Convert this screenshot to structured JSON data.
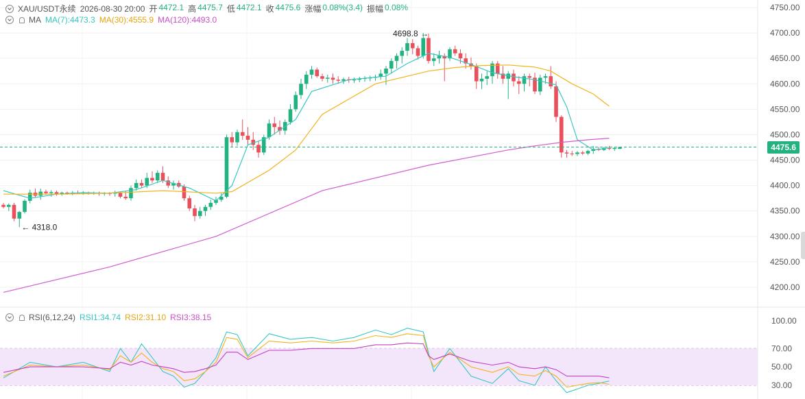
{
  "header": {
    "symbol": "XAU/USDT永续",
    "datetime": "2026-08-30 20:00",
    "open_label": "开",
    "open": "4472.1",
    "high_label": "高",
    "high": "4475.7",
    "low_label": "低",
    "low": "4472.1",
    "close_label": "收",
    "close": "4475.6",
    "change_label": "涨幅",
    "change": "0.08%(3.4)",
    "amp_label": "振幅",
    "amp": "0.08%"
  },
  "ma_legend": {
    "title": "MA",
    "ma7": "MA(7):4473.3",
    "ma30": "MA(30):4555.9",
    "ma120": "MA(120):4493.0"
  },
  "rsi_legend": {
    "title": "RSI(6,12,24)",
    "rsi1": "RSI1:34.74",
    "rsi2": "RSI2:31.10",
    "rsi3": "RSI3:38.15"
  },
  "colors": {
    "up": "#22b27f",
    "down": "#e8505b",
    "ma7": "#35c7c2",
    "ma30": "#f2b21a",
    "ma120": "#d25bd2",
    "rsi1": "#35c7c2",
    "rsi2": "#f2b21a",
    "rsi3": "#c23fc2",
    "rsi_band": "#f3e6fb"
  },
  "annotations": {
    "max_label": "4698.8",
    "min_label": "4318.0"
  },
  "current_price": "4475.6",
  "chart_data": {
    "type": "candlestick",
    "price_axis": {
      "ylim": [
        4175,
        4760
      ],
      "ticks": [
        4750,
        4700,
        4650,
        4600,
        4550,
        4500,
        4450,
        4400,
        4350,
        4300,
        4250,
        4200
      ],
      "tick_labels": [
        "4750.00",
        "4700.00",
        "4650.00",
        "4600.00",
        "4550.00",
        "4500.00",
        "4450.00",
        "4400.00",
        "4350.00",
        "4300.00",
        "4250.00",
        "4200.00"
      ],
      "current": 4475.6
    },
    "candles": [
      [
        4362,
        4366,
        4355,
        4358
      ],
      [
        4358,
        4365,
        4350,
        4362
      ],
      [
        4362,
        4366,
        4330,
        4335
      ],
      [
        4335,
        4350,
        4318,
        4348
      ],
      [
        4348,
        4373,
        4345,
        4370
      ],
      [
        4370,
        4392,
        4365,
        4386
      ],
      [
        4386,
        4394,
        4376,
        4380
      ],
      [
        4380,
        4394,
        4372,
        4388
      ],
      [
        4388,
        4392,
        4382,
        4385
      ],
      [
        4385,
        4391,
        4378,
        4387
      ],
      [
        4387,
        4390,
        4380,
        4384
      ],
      [
        4384,
        4388,
        4380,
        4386
      ],
      [
        4386,
        4388,
        4382,
        4384
      ],
      [
        4384,
        4389,
        4381,
        4386
      ],
      [
        4386,
        4390,
        4383,
        4385
      ],
      [
        4385,
        4389,
        4382,
        4386
      ],
      [
        4386,
        4388,
        4382,
        4385
      ],
      [
        4385,
        4388,
        4382,
        4386
      ],
      [
        4386,
        4388,
        4380,
        4384
      ],
      [
        4384,
        4387,
        4380,
        4385
      ],
      [
        4385,
        4387,
        4380,
        4384
      ],
      [
        4384,
        4390,
        4378,
        4386
      ],
      [
        4386,
        4388,
        4375,
        4378
      ],
      [
        4378,
        4390,
        4372,
        4375
      ],
      [
        4375,
        4400,
        4370,
        4395
      ],
      [
        4395,
        4412,
        4390,
        4405
      ],
      [
        4405,
        4412,
        4395,
        4400
      ],
      [
        4400,
        4425,
        4395,
        4415
      ],
      [
        4415,
        4428,
        4405,
        4410
      ],
      [
        4410,
        4430,
        4405,
        4425
      ],
      [
        4425,
        4438,
        4405,
        4410
      ],
      [
        4410,
        4418,
        4395,
        4400
      ],
      [
        4400,
        4410,
        4392,
        4405
      ],
      [
        4405,
        4410,
        4395,
        4398
      ],
      [
        4398,
        4402,
        4370,
        4375
      ],
      [
        4375,
        4380,
        4350,
        4355
      ],
      [
        4355,
        4362,
        4330,
        4340
      ],
      [
        4340,
        4358,
        4335,
        4350
      ],
      [
        4350,
        4362,
        4340,
        4358
      ],
      [
        4358,
        4372,
        4352,
        4366
      ],
      [
        4366,
        4378,
        4362,
        4372
      ],
      [
        4372,
        4385,
        4368,
        4378
      ],
      [
        4378,
        4500,
        4375,
        4495
      ],
      [
        4495,
        4505,
        4475,
        4485
      ],
      [
        4485,
        4510,
        4478,
        4505
      ],
      [
        4505,
        4530,
        4490,
        4498
      ],
      [
        4498,
        4515,
        4480,
        4490
      ],
      [
        4490,
        4505,
        4470,
        4480
      ],
      [
        4480,
        4488,
        4455,
        4465
      ],
      [
        4465,
        4500,
        4460,
        4495
      ],
      [
        4495,
        4530,
        4490,
        4522
      ],
      [
        4522,
        4535,
        4500,
        4515
      ],
      [
        4515,
        4528,
        4500,
        4508
      ],
      [
        4508,
        4530,
        4500,
        4525
      ],
      [
        4525,
        4560,
        4520,
        4550
      ],
      [
        4550,
        4585,
        4545,
        4578
      ],
      [
        4578,
        4610,
        4570,
        4600
      ],
      [
        4600,
        4625,
        4590,
        4618
      ],
      [
        4618,
        4635,
        4610,
        4628
      ],
      [
        4628,
        4632,
        4612,
        4615
      ],
      [
        4615,
        4620,
        4605,
        4610
      ],
      [
        4610,
        4618,
        4602,
        4612
      ],
      [
        4612,
        4620,
        4600,
        4608
      ],
      [
        4608,
        4615,
        4600,
        4606
      ],
      [
        4606,
        4612,
        4600,
        4609
      ],
      [
        4609,
        4614,
        4602,
        4607
      ],
      [
        4607,
        4612,
        4602,
        4608
      ],
      [
        4608,
        4614,
        4603,
        4610
      ],
      [
        4610,
        4615,
        4604,
        4611
      ],
      [
        4611,
        4616,
        4605,
        4612
      ],
      [
        4612,
        4618,
        4606,
        4614
      ],
      [
        4614,
        4628,
        4608,
        4620
      ],
      [
        4620,
        4635,
        4598,
        4630
      ],
      [
        4630,
        4650,
        4620,
        4645
      ],
      [
        4645,
        4660,
        4630,
        4655
      ],
      [
        4655,
        4672,
        4640,
        4665
      ],
      [
        4665,
        4690,
        4655,
        4680
      ],
      [
        4680,
        4688,
        4658,
        4670
      ],
      [
        4670,
        4675,
        4648,
        4655
      ],
      [
        4655,
        4700,
        4650,
        4690
      ],
      [
        4690,
        4698.8,
        4640,
        4645
      ],
      [
        4645,
        4660,
        4635,
        4650
      ],
      [
        4650,
        4665,
        4640,
        4655
      ],
      [
        4655,
        4660,
        4605,
        4650
      ],
      [
        4650,
        4672,
        4645,
        4668
      ],
      [
        4668,
        4675,
        4655,
        4660
      ],
      [
        4660,
        4668,
        4640,
        4650
      ],
      [
        4650,
        4660,
        4630,
        4640
      ],
      [
        4640,
        4652,
        4628,
        4635
      ],
      [
        4635,
        4640,
        4590,
        4605
      ],
      [
        4605,
        4620,
        4590,
        4610
      ],
      [
        4610,
        4625,
        4598,
        4615
      ],
      [
        4615,
        4645,
        4600,
        4640
      ],
      [
        4640,
        4645,
        4610,
        4620
      ],
      [
        4620,
        4635,
        4600,
        4610
      ],
      [
        4610,
        4625,
        4570,
        4620
      ],
      [
        4620,
        4628,
        4595,
        4605
      ],
      [
        4605,
        4615,
        4580,
        4600
      ],
      [
        4600,
        4620,
        4585,
        4615
      ],
      [
        4615,
        4620,
        4595,
        4612
      ],
      [
        4612,
        4622,
        4580,
        4585
      ],
      [
        4585,
        4618,
        4578,
        4612
      ],
      [
        4612,
        4620,
        4600,
        4615
      ],
      [
        4615,
        4635,
        4590,
        4595
      ],
      [
        4595,
        4605,
        4525,
        4535
      ],
      [
        4535,
        4538,
        4455,
        4465
      ],
      [
        4465,
        4470,
        4455,
        4463
      ],
      [
        4463,
        4468,
        4458,
        4462
      ],
      [
        4462,
        4468,
        4458,
        4465
      ],
      [
        4465,
        4468,
        4460,
        4463
      ],
      [
        4463,
        4470,
        4460,
        4468
      ],
      [
        4468,
        4478,
        4462,
        4472
      ],
      [
        4472,
        4476,
        4468,
        4470
      ],
      [
        4470,
        4476,
        4468,
        4474
      ],
      [
        4474,
        4478,
        4470,
        4472
      ],
      [
        4472,
        4476,
        4468,
        4474
      ],
      [
        4472.1,
        4475.7,
        4472.1,
        4475.6
      ]
    ],
    "max_point": {
      "index": 80,
      "value": 4698.8
    },
    "min_point": {
      "index": 3,
      "value": 4318.0
    },
    "series": [
      {
        "name": "MA(7)",
        "x": [
          0,
          5,
          10,
          15,
          20,
          25,
          30,
          35,
          40,
          43,
          46,
          50,
          55,
          58,
          65,
          72,
          76,
          80,
          84,
          88,
          92,
          96,
          100,
          104,
          106,
          108,
          111,
          114
        ],
        "values": [
          4390,
          4375,
          4383,
          4386,
          4385,
          4392,
          4410,
          4395,
          4370,
          4400,
          4480,
          4495,
          4530,
          4585,
          4608,
          4615,
          4640,
          4660,
          4652,
          4638,
          4622,
          4614,
          4608,
          4598,
          4555,
          4490,
          4470,
          4474
        ]
      },
      {
        "name": "MA(30)",
        "x": [
          0,
          10,
          20,
          30,
          40,
          43,
          50,
          55,
          60,
          70,
          80,
          85,
          90,
          95,
          100,
          103,
          107,
          111,
          114
        ],
        "values": [
          4383,
          4383,
          4385,
          4390,
          4385,
          4388,
          4430,
          4470,
          4540,
          4600,
          4625,
          4632,
          4636,
          4637,
          4633,
          4625,
          4600,
          4580,
          4555.9
        ]
      },
      {
        "name": "MA(120)",
        "x": [
          0,
          20,
          40,
          60,
          80,
          95,
          100,
          105,
          110,
          114
        ],
        "values": [
          4190,
          4240,
          4300,
          4390,
          4440,
          4470,
          4478,
          4485,
          4490,
          4493.0
        ]
      }
    ],
    "rsi": {
      "ylim": [
        25,
        100
      ],
      "ticks": [
        100,
        70,
        50,
        30
      ],
      "tick_labels": [
        "100.00",
        "70.00",
        "50.00",
        "30.00"
      ],
      "band": [
        30,
        70
      ],
      "x": [
        0,
        5,
        10,
        15,
        20,
        22,
        24,
        26,
        28,
        30,
        32,
        34,
        36,
        38,
        40,
        42,
        44,
        46,
        50,
        54,
        58,
        62,
        66,
        70,
        73,
        76,
        79,
        80,
        81,
        84,
        88,
        92,
        95,
        97,
        100,
        102,
        104,
        106,
        108,
        110,
        112,
        114
      ],
      "series": [
        {
          "name": "RSI1",
          "values": [
            38,
            55,
            50,
            55,
            45,
            70,
            55,
            75,
            60,
            45,
            40,
            28,
            32,
            45,
            60,
            88,
            85,
            62,
            86,
            80,
            82,
            78,
            82,
            90,
            85,
            92,
            88,
            65,
            45,
            70,
            40,
            32,
            48,
            35,
            30,
            50,
            35,
            22,
            26,
            30,
            32,
            34.74
          ]
        },
        {
          "name": "RSI2",
          "values": [
            40,
            52,
            50,
            52,
            47,
            62,
            55,
            65,
            55,
            48,
            45,
            35,
            37,
            45,
            55,
            82,
            80,
            60,
            78,
            76,
            78,
            76,
            78,
            84,
            82,
            86,
            84,
            62,
            50,
            66,
            50,
            44,
            50,
            42,
            40,
            46,
            40,
            28,
            30,
            32,
            33,
            31.1
          ]
        },
        {
          "name": "RSI3",
          "values": [
            44,
            50,
            50,
            50,
            48,
            55,
            52,
            56,
            52,
            50,
            48,
            44,
            45,
            48,
            52,
            66,
            66,
            58,
            68,
            68,
            70,
            70,
            70,
            74,
            74,
            76,
            75,
            62,
            58,
            64,
            56,
            52,
            55,
            50,
            48,
            50,
            47,
            40,
            40,
            40,
            40,
            38.15
          ]
        }
      ]
    }
  }
}
